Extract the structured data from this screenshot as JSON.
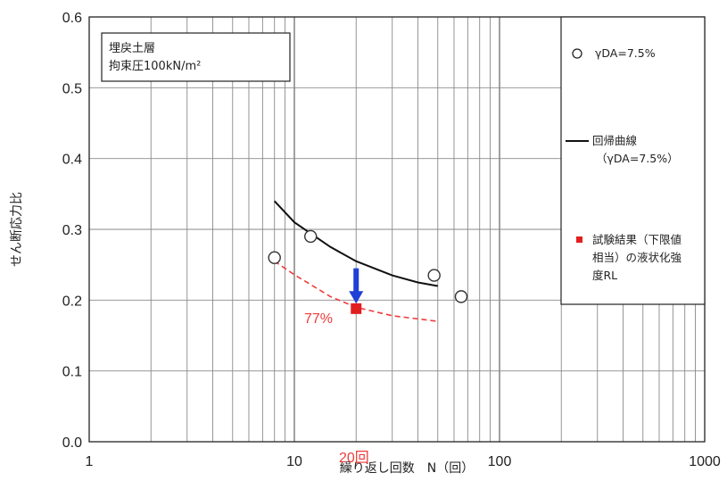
{
  "chart_data": {
    "type": "scatter",
    "x_scale": "log",
    "xlim": [
      1,
      1000
    ],
    "ylim": [
      0.0,
      0.6
    ],
    "xlabel": "繰り返し回数　N（回）",
    "ylabel": "せん断応力比",
    "x_ticks": [
      "1",
      "10",
      "100",
      "1000"
    ],
    "y_ticks": [
      "0.0",
      "0.1",
      "0.2",
      "0.3",
      "0.4",
      "0.5",
      "0.6"
    ],
    "grid": true,
    "annotation_box": {
      "line1": "埋戻土層",
      "line2": "拘束圧100kN/m²"
    },
    "series": [
      {
        "name": "γDA=7.5%",
        "kind": "scatter",
        "marker": "open-circle",
        "color": "#333333",
        "points": [
          {
            "x": 8,
            "y": 0.26
          },
          {
            "x": 12,
            "y": 0.29
          },
          {
            "x": 48,
            "y": 0.235
          },
          {
            "x": 65,
            "y": 0.205
          }
        ]
      },
      {
        "name": "回帰曲線（γDA=7.5%）",
        "kind": "line",
        "color": "#111111",
        "points": [
          {
            "x": 8,
            "y": 0.34
          },
          {
            "x": 10,
            "y": 0.31
          },
          {
            "x": 15,
            "y": 0.275
          },
          {
            "x": 20,
            "y": 0.255
          },
          {
            "x": 30,
            "y": 0.235
          },
          {
            "x": 40,
            "y": 0.225
          },
          {
            "x": 50,
            "y": 0.22
          }
        ]
      },
      {
        "name": "試験結果（下限値相当）の液状化強度RL",
        "kind": "scatter",
        "marker": "filled-square",
        "color": "#e21f1f",
        "points": [
          {
            "x": 20,
            "y": 0.188
          }
        ]
      },
      {
        "name": "",
        "kind": "dashed-line",
        "color": "#f03b3b",
        "points": [
          {
            "x": 8,
            "y": 0.255
          },
          {
            "x": 10,
            "y": 0.236
          },
          {
            "x": 15,
            "y": 0.205
          },
          {
            "x": 20,
            "y": 0.19
          },
          {
            "x": 30,
            "y": 0.178
          },
          {
            "x": 50,
            "y": 0.17
          }
        ]
      }
    ],
    "arrow": {
      "x": 20,
      "y_from": 0.245,
      "y_to": 0.195,
      "color": "#1f3fd6"
    },
    "labels": {
      "ratio": "77%",
      "cycles": "20回"
    },
    "legend": {
      "placement": "right",
      "items": [
        {
          "text": "γDA=7.5%"
        },
        {
          "line1": "回帰曲線",
          "line2": "（γDA=7.5%）"
        },
        {
          "line1": "試験結果（下限値",
          "line2": "相当）の液状化強",
          "line3": "度RL"
        }
      ]
    }
  }
}
